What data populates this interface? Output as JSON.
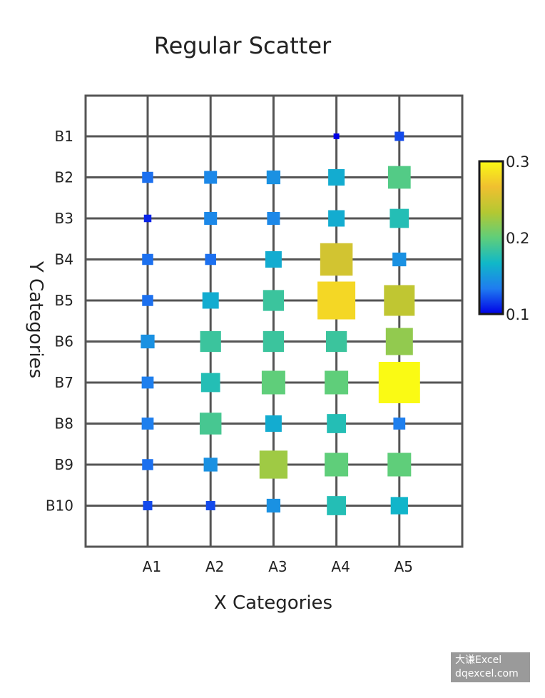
{
  "chart_data": {
    "type": "heatmap",
    "subtype": "size-and-color scatter on a category grid",
    "title": "Regular Scatter",
    "xlabel": "X Categories",
    "ylabel": "Y Categories",
    "x_categories": [
      "A1",
      "A2",
      "A3",
      "A4",
      "A5"
    ],
    "y_categories": [
      "B1",
      "B2",
      "B3",
      "B4",
      "B5",
      "B6",
      "B7",
      "B8",
      "B9",
      "B10"
    ],
    "values": [
      [
        null,
        null,
        null,
        0.1,
        0.12
      ],
      [
        0.13,
        0.14,
        0.145,
        0.16,
        0.195
      ],
      [
        0.11,
        0.14,
        0.14,
        0.16,
        0.175
      ],
      [
        0.13,
        0.13,
        0.16,
        0.25,
        0.145
      ],
      [
        0.13,
        0.16,
        0.185,
        0.28,
        0.24
      ],
      [
        0.145,
        0.185,
        0.185,
        0.185,
        0.22
      ],
      [
        0.135,
        0.175,
        0.2,
        0.2,
        0.3
      ],
      [
        0.135,
        0.19,
        0.16,
        0.175,
        0.135
      ],
      [
        0.13,
        0.145,
        0.225,
        0.2,
        0.2
      ],
      [
        0.12,
        0.12,
        0.145,
        0.175,
        0.165
      ]
    ],
    "colorbar": {
      "min": 0.1,
      "max": 0.3,
      "tick_labels": [
        "0.3",
        "0.2",
        "0.1"
      ],
      "tick_values": [
        0.3,
        0.2,
        0.1
      ],
      "colormap": "parula",
      "stops": [
        "#0000e6",
        "#1f7cf0",
        "#10b8c8",
        "#5fce7a",
        "#b4c832",
        "#f0c030",
        "#fafa14"
      ]
    },
    "grid": true,
    "legend": "colorbar right"
  },
  "colors": {
    "axis": "#555555",
    "grid": "#555555",
    "text": "#222222"
  },
  "watermark": {
    "line1": "大谦Excel",
    "line2": "dqexcel.com"
  }
}
